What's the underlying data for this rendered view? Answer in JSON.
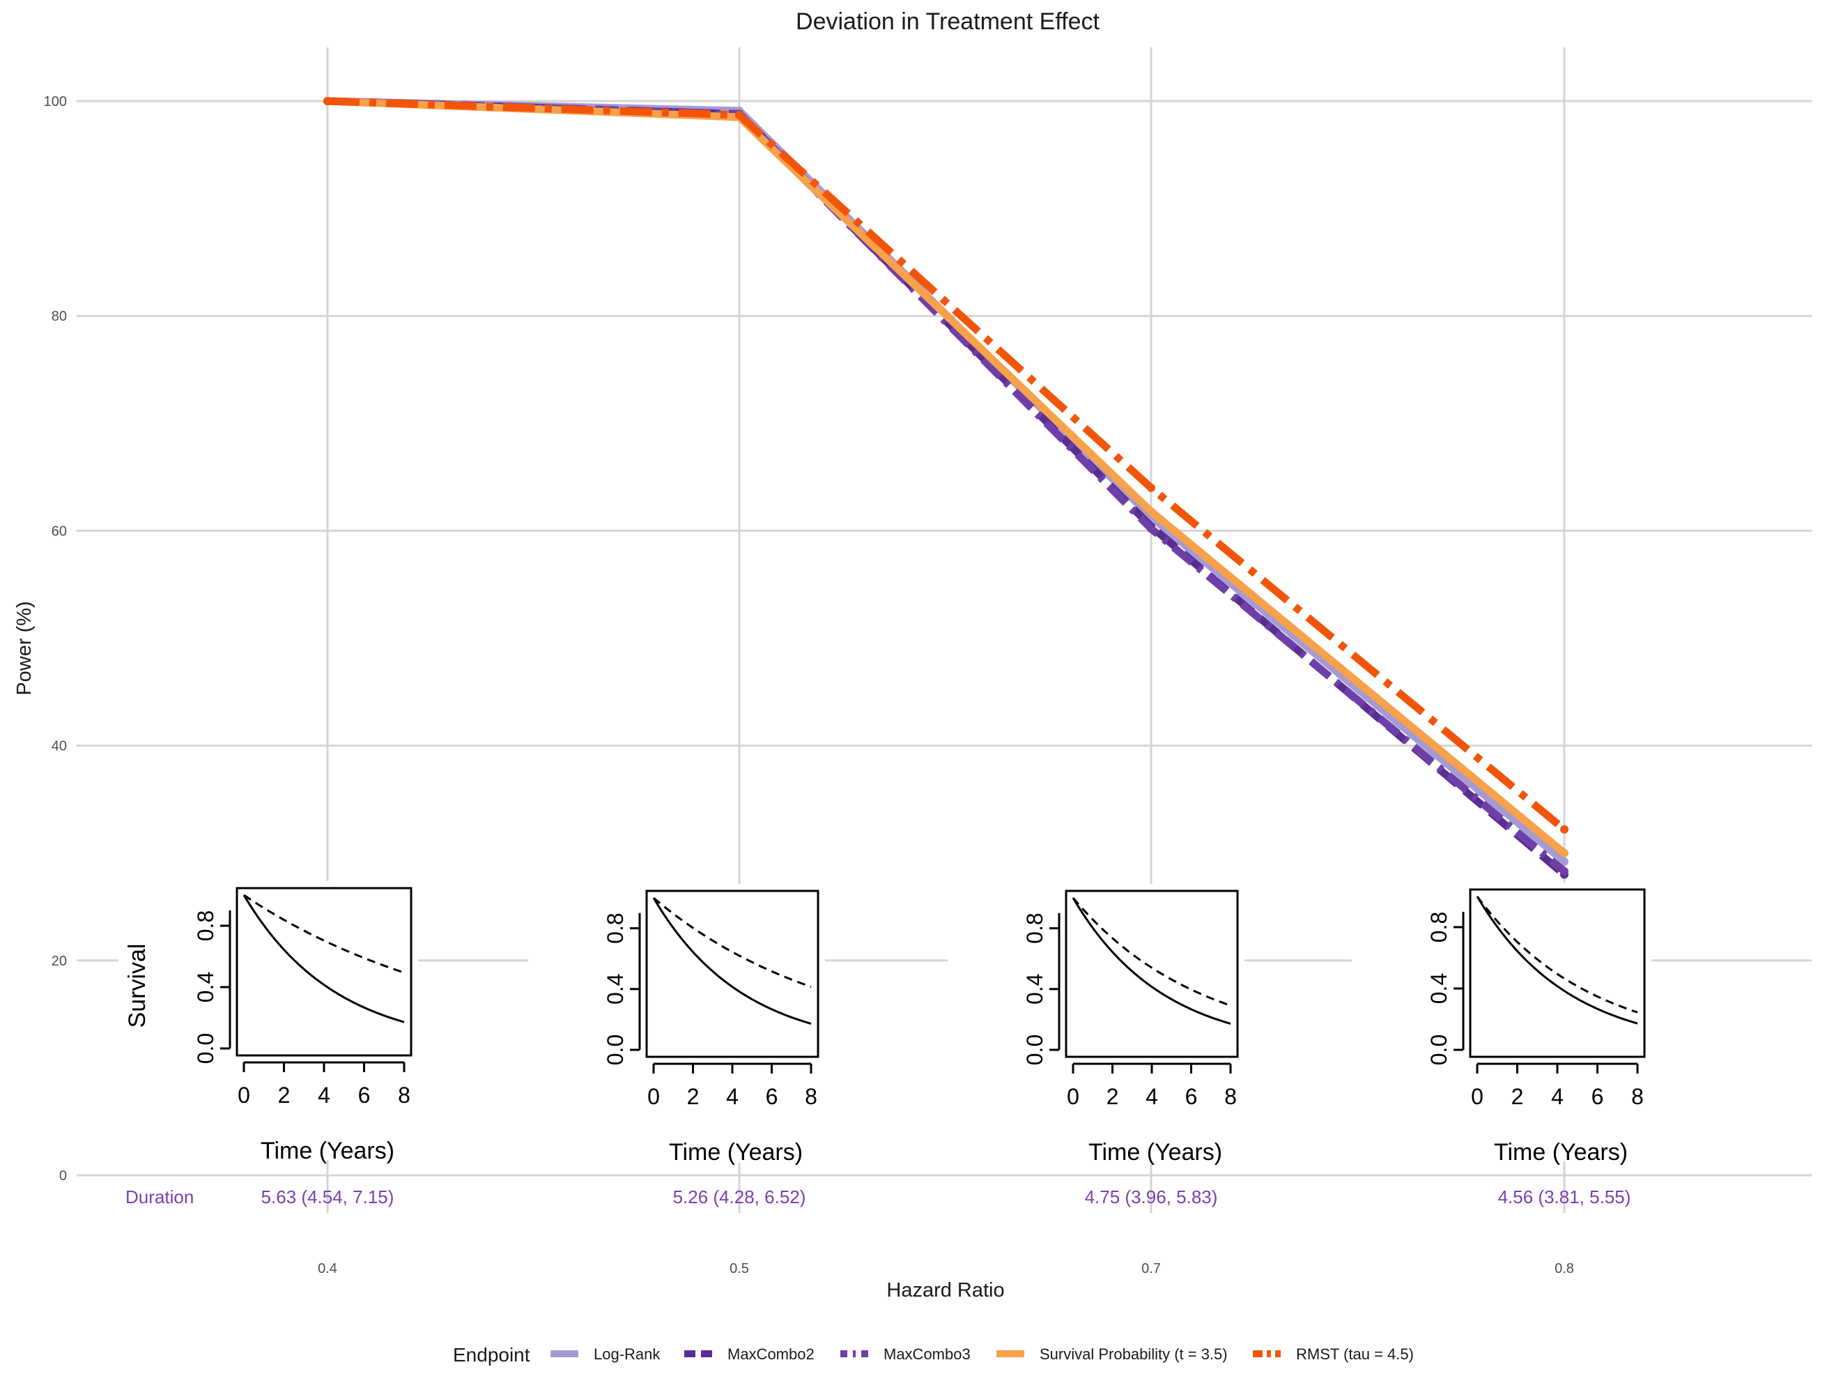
{
  "chart_data": {
    "type": "line",
    "title": "Deviation in Treatment Effect",
    "xlabel": "Hazard Ratio",
    "ylabel": "Power (%)",
    "categories": [
      "0.4",
      "0.5",
      "0.7",
      "0.8"
    ],
    "x": [
      0.4,
      0.5,
      0.7,
      0.8
    ],
    "ylim": [
      0,
      100
    ],
    "yticks": [
      0,
      20,
      40,
      60,
      80,
      100
    ],
    "grid": true,
    "legend_position": "bottom",
    "legend_title": "Endpoint",
    "series": [
      {
        "name": "Log-Rank",
        "values": [
          100,
          99.1,
          61.3,
          29.2
        ],
        "color": "#a59bd4",
        "dash": "solid"
      },
      {
        "name": "MaxCombo2",
        "values": [
          100,
          98.8,
          60.4,
          28.0
        ],
        "color": "#5a2d91",
        "dash": "long-dash"
      },
      {
        "name": "MaxCombo3",
        "values": [
          100,
          98.8,
          60.2,
          28.3
        ],
        "color": "#6e3fa8",
        "dash": "dot-dash"
      },
      {
        "name": "Survival Probability (t = 3.5)",
        "values": [
          100,
          98.5,
          61.8,
          30.0
        ],
        "color": "#f7a14a",
        "dash": "solid"
      },
      {
        "name": "RMST (tau = 4.5)",
        "values": [
          100,
          98.7,
          64.0,
          32.2
        ],
        "color": "#f2550a",
        "dash": "dash-dot"
      }
    ],
    "duration_label": "Duration",
    "durations": [
      "5.63 (4.54, 7.15)",
      "5.26 (4.28, 6.52)",
      "4.75 (3.96, 5.83)",
      "4.56 (3.81, 5.55)"
    ],
    "insets": {
      "xlabel": "Time (Years)",
      "ylabel": "Survival",
      "xticks": [
        "0",
        "2",
        "4",
        "6",
        "8"
      ],
      "yticks": [
        "0.0",
        "0.4",
        "0.8"
      ],
      "xlim": [
        0,
        8
      ],
      "ylim": [
        0,
        1
      ],
      "panels": [
        {
          "hr": 0.4,
          "control_rate": 0.22
        },
        {
          "hr": 0.5,
          "control_rate": 0.22
        },
        {
          "hr": 0.7,
          "control_rate": 0.22
        },
        {
          "hr": 0.8,
          "control_rate": 0.22
        }
      ]
    }
  }
}
